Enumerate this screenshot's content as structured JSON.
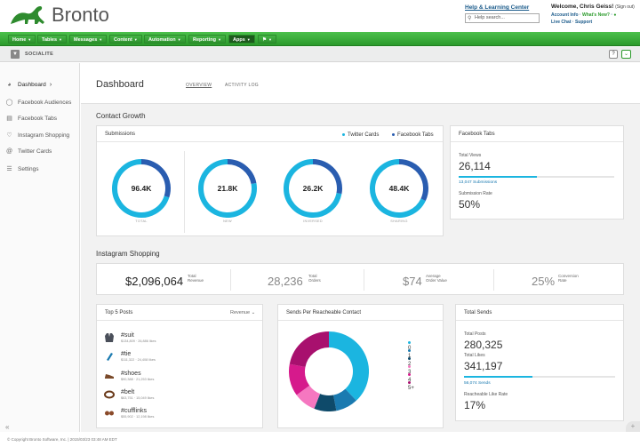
{
  "app": {
    "logo_text": "Bronto",
    "help_link": "Help & Learning Center",
    "search_placeholder": "Help search...",
    "welcome": "Welcome, Chris Geiss!",
    "sign_out": "(Sign out)",
    "account_info": "Account Info",
    "whats_new": "What's New?",
    "live_chat": "Live Chat",
    "support": "Support"
  },
  "nav": {
    "items": [
      {
        "label": "Home"
      },
      {
        "label": "Tables"
      },
      {
        "label": "Messages"
      },
      {
        "label": "Content"
      },
      {
        "label": "Automation"
      },
      {
        "label": "Reporting"
      },
      {
        "label": "Apps"
      }
    ]
  },
  "subbar": {
    "label": "SOCIALITE",
    "help": "?"
  },
  "sidebar": {
    "items": [
      {
        "label": "Dashboard",
        "icon": "dashboard-icon"
      },
      {
        "label": "Facebook Audiences",
        "icon": "target-icon"
      },
      {
        "label": "Facebook Tabs",
        "icon": "tab-icon"
      },
      {
        "label": "Instagram Shopping",
        "icon": "heart-icon"
      },
      {
        "label": "Twitter Cards",
        "icon": "at-icon"
      },
      {
        "label": "Settings",
        "icon": "settings-icon"
      }
    ],
    "collapse": "«"
  },
  "header": {
    "title": "Dashboard",
    "tabs": [
      "OVERVIEW",
      "ACTIVITY LOG"
    ]
  },
  "contact_growth": {
    "title": "Contact Growth",
    "submissions": {
      "title": "Submissions",
      "legend": [
        "Twitter Cards",
        "Facebook Tabs"
      ],
      "colors": {
        "twitter": "#1bb5e0",
        "facebook": "#2a5db0"
      },
      "rings": [
        {
          "value": "96.4K",
          "label": "TOTAL",
          "facebook_fraction": 0.3
        },
        {
          "value": "21.8K",
          "label": "NEW",
          "facebook_fraction": 0.22
        },
        {
          "value": "26.2K",
          "label": "INVERSED",
          "facebook_fraction": 0.28
        },
        {
          "value": "48.4K",
          "label": "SHARING",
          "facebook_fraction": 0.32
        }
      ]
    },
    "facebook_tabs": {
      "title": "Facebook Tabs",
      "total_views_label": "Total Views",
      "total_views": "26,114",
      "submissions_link": "13,047 Submissions",
      "submission_progress": 0.5,
      "rate_label": "Submission Rate",
      "rate": "50%"
    }
  },
  "instagram": {
    "title": "Instagram Shopping",
    "stats": [
      {
        "value": "$2,096,064",
        "label1": "Total",
        "label2": "Revenue"
      },
      {
        "value": "28,236",
        "label1": "Total",
        "label2": "Orders"
      },
      {
        "value": "$74",
        "label1": "Average",
        "label2": "Order Value"
      },
      {
        "value": "25%",
        "label1": "Conversion",
        "label2": "Rate"
      }
    ]
  },
  "top_posts": {
    "title": "Top 5 Posts",
    "sort": "Revenue",
    "posts": [
      {
        "tag": "#suit",
        "meta": "$134,809 · 26,886 likes"
      },
      {
        "tag": "#tie",
        "meta": "$111,322 · 24,408 likes"
      },
      {
        "tag": "#shoes",
        "meta": "$90,388 · 21,253 likes"
      },
      {
        "tag": "#belt",
        "meta": "$63,751 · 15,049 likes"
      },
      {
        "tag": "#cufflinks",
        "meta": "$55,902 · 12,198 likes"
      }
    ]
  },
  "sends_per": {
    "title": "Sends Per Reacheable Contact",
    "legend": [
      "0",
      "1",
      "2",
      "3",
      "4",
      "5+"
    ],
    "colors": [
      "#1bb5e0",
      "#1a7ab0",
      "#0e4a6a",
      "#f577c0",
      "#d61a8c",
      "#a8106e"
    ],
    "shares": [
      0.38,
      0.09,
      0.09,
      0.09,
      0.13,
      0.22
    ]
  },
  "total_sends": {
    "title": "Total Sends",
    "posts_label": "Total Posts",
    "posts": "280,325",
    "likes_label": "Total Likes",
    "likes": "341,197",
    "sends_link": "56,074 Sends",
    "sends_progress": 0.45,
    "rate_label": "Reacheable Like Rate",
    "rate": "17%"
  },
  "footer": {
    "text": "© Copyright Bronto Software, Inc.  |  2015/03/23 03:48 AM EDT"
  }
}
